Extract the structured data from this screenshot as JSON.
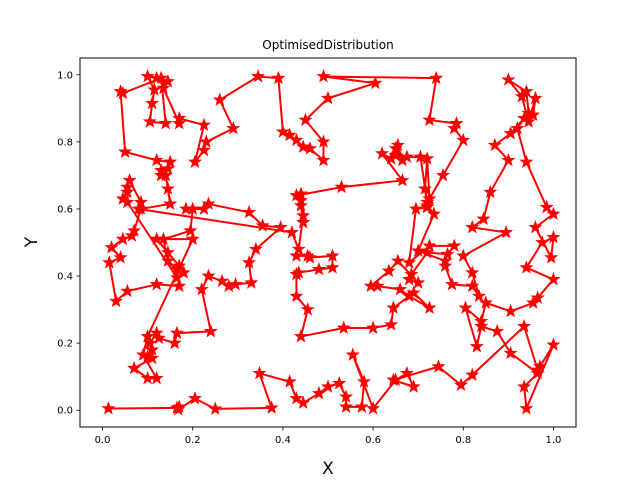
{
  "chart_data": {
    "type": "line",
    "title": "OptimisedDistribution",
    "xlabel": "X",
    "ylabel": "Y",
    "xlim": [
      -0.05,
      1.05
    ],
    "ylim": [
      -0.05,
      1.05
    ],
    "xticks": [
      "0.0",
      "0.2",
      "0.4",
      "0.6",
      "0.8",
      "1.0"
    ],
    "yticks": [
      "0.0",
      "0.2",
      "0.4",
      "0.6",
      "0.8",
      "1.0"
    ],
    "grid": false,
    "marker": "star",
    "color": "#ff0000",
    "series": [
      {
        "points": [
          [
            0.013,
            0.005
          ],
          [
            0.165,
            0.007
          ],
          [
            0.17,
            0.01
          ],
          [
            0.168,
            0.002
          ],
          [
            0.205,
            0.035
          ],
          [
            0.25,
            0.004
          ],
          [
            0.375,
            0.007
          ],
          [
            0.348,
            0.11
          ],
          [
            0.415,
            0.085
          ],
          [
            0.43,
            0.035
          ],
          [
            0.445,
            0.022
          ],
          [
            0.48,
            0.05
          ],
          [
            0.5,
            0.07
          ],
          [
            0.525,
            0.08
          ],
          [
            0.54,
            0.04
          ],
          [
            0.54,
            0.01
          ],
          [
            0.575,
            0.01
          ],
          [
            0.58,
            0.085
          ],
          [
            0.555,
            0.165
          ],
          [
            0.6,
            0.005
          ],
          [
            0.65,
            0.09
          ],
          [
            0.675,
            0.11
          ],
          [
            0.69,
            0.07
          ],
          [
            0.645,
            0.09
          ],
          [
            0.745,
            0.13
          ],
          [
            0.795,
            0.075
          ],
          [
            0.82,
            0.105
          ],
          [
            0.935,
            0.25
          ],
          [
            0.965,
            0.12
          ],
          [
            0.97,
            0.13
          ],
          [
            1.0,
            0.195
          ],
          [
            0.94,
            0.005
          ],
          [
            0.935,
            0.07
          ],
          [
            0.965,
            0.11
          ],
          [
            0.905,
            0.17
          ],
          [
            0.875,
            0.235
          ],
          [
            0.84,
            0.25
          ],
          [
            0.83,
            0.19
          ],
          [
            0.805,
            0.305
          ],
          [
            0.84,
            0.265
          ],
          [
            0.85,
            0.32
          ],
          [
            0.905,
            0.295
          ],
          [
            0.955,
            0.32
          ],
          [
            0.965,
            0.335
          ],
          [
            1.0,
            0.39
          ],
          [
            0.94,
            0.425
          ],
          [
            0.975,
            0.5
          ],
          [
            1.0,
            0.515
          ],
          [
            0.995,
            0.455
          ],
          [
            0.96,
            0.545
          ],
          [
            1.0,
            0.585
          ],
          [
            0.985,
            0.605
          ],
          [
            0.94,
            0.74
          ],
          [
            0.92,
            0.84
          ],
          [
            0.935,
            0.87
          ],
          [
            0.955,
            0.88
          ],
          [
            0.96,
            0.93
          ],
          [
            0.945,
            0.86
          ],
          [
            0.93,
            0.935
          ],
          [
            0.9,
            0.985
          ],
          [
            0.94,
            0.95
          ],
          [
            0.945,
            0.885
          ],
          [
            0.905,
            0.825
          ],
          [
            0.87,
            0.79
          ],
          [
            0.9,
            0.745
          ],
          [
            0.86,
            0.65
          ],
          [
            0.845,
            0.57
          ],
          [
            0.82,
            0.545
          ],
          [
            0.895,
            0.53
          ],
          [
            0.8,
            0.46
          ],
          [
            0.82,
            0.41
          ],
          [
            0.835,
            0.34
          ],
          [
            0.82,
            0.37
          ],
          [
            0.775,
            0.375
          ],
          [
            0.76,
            0.43
          ],
          [
            0.76,
            0.445
          ],
          [
            0.7,
            0.475
          ],
          [
            0.735,
            0.585
          ],
          [
            0.72,
            0.61
          ],
          [
            0.715,
            0.66
          ],
          [
            0.72,
            0.75
          ],
          [
            0.725,
            0.63
          ],
          [
            0.755,
            0.7
          ],
          [
            0.8,
            0.805
          ],
          [
            0.78,
            0.84
          ],
          [
            0.785,
            0.855
          ],
          [
            0.725,
            0.865
          ],
          [
            0.74,
            0.99
          ],
          [
            0.49,
            0.995
          ],
          [
            0.605,
            0.975
          ],
          [
            0.5,
            0.93
          ],
          [
            0.45,
            0.865
          ],
          [
            0.49,
            0.8
          ],
          [
            0.49,
            0.745
          ],
          [
            0.46,
            0.78
          ],
          [
            0.445,
            0.785
          ],
          [
            0.43,
            0.805
          ],
          [
            0.415,
            0.82
          ],
          [
            0.4,
            0.83
          ],
          [
            0.39,
            0.99
          ],
          [
            0.345,
            0.995
          ],
          [
            0.26,
            0.925
          ],
          [
            0.29,
            0.84
          ],
          [
            0.23,
            0.8
          ],
          [
            0.225,
            0.775
          ],
          [
            0.205,
            0.74
          ],
          [
            0.225,
            0.85
          ],
          [
            0.17,
            0.87
          ],
          [
            0.17,
            0.855
          ],
          [
            0.135,
            0.96
          ],
          [
            0.145,
            0.98
          ],
          [
            0.12,
            0.99
          ],
          [
            0.1,
            0.995
          ],
          [
            0.115,
            0.955
          ],
          [
            0.11,
            0.915
          ],
          [
            0.105,
            0.86
          ],
          [
            0.14,
            0.855
          ],
          [
            0.13,
            0.99
          ],
          [
            0.045,
            0.945
          ],
          [
            0.04,
            0.95
          ],
          [
            0.05,
            0.77
          ],
          [
            0.12,
            0.745
          ],
          [
            0.15,
            0.74
          ],
          [
            0.145,
            0.72
          ],
          [
            0.13,
            0.715
          ],
          [
            0.13,
            0.7
          ],
          [
            0.14,
            0.7
          ],
          [
            0.145,
            0.66
          ],
          [
            0.15,
            0.615
          ],
          [
            0.085,
            0.6
          ],
          [
            0.07,
            0.535
          ],
          [
            0.065,
            0.52
          ],
          [
            0.045,
            0.51
          ],
          [
            0.02,
            0.485
          ],
          [
            0.04,
            0.455
          ],
          [
            0.015,
            0.44
          ],
          [
            0.03,
            0.325
          ],
          [
            0.055,
            0.355
          ],
          [
            0.12,
            0.375
          ],
          [
            0.17,
            0.37
          ],
          [
            0.165,
            0.42
          ],
          [
            0.145,
            0.445
          ],
          [
            0.135,
            0.51
          ],
          [
            0.195,
            0.535
          ],
          [
            0.2,
            0.6
          ],
          [
            0.185,
            0.6
          ],
          [
            0.225,
            0.6
          ],
          [
            0.235,
            0.615
          ],
          [
            0.325,
            0.59
          ],
          [
            0.355,
            0.55
          ],
          [
            0.395,
            0.545
          ],
          [
            0.34,
            0.48
          ],
          [
            0.325,
            0.44
          ],
          [
            0.33,
            0.38
          ],
          [
            0.295,
            0.375
          ],
          [
            0.28,
            0.37
          ],
          [
            0.265,
            0.385
          ],
          [
            0.235,
            0.4
          ],
          [
            0.22,
            0.36
          ],
          [
            0.24,
            0.235
          ],
          [
            0.165,
            0.23
          ],
          [
            0.16,
            0.2
          ],
          [
            0.125,
            0.215
          ],
          [
            0.12,
            0.23
          ],
          [
            0.105,
            0.2
          ],
          [
            0.11,
            0.18
          ],
          [
            0.1,
            0.16
          ],
          [
            0.11,
            0.155
          ],
          [
            0.07,
            0.125
          ],
          [
            0.1,
            0.095
          ],
          [
            0.12,
            0.095
          ],
          [
            0.09,
            0.165
          ],
          [
            0.1,
            0.22
          ],
          [
            0.2,
            0.51
          ],
          [
            0.12,
            0.51
          ],
          [
            0.145,
            0.47
          ],
          [
            0.17,
            0.43
          ],
          [
            0.18,
            0.41
          ],
          [
            0.165,
            0.395
          ],
          [
            0.055,
            0.62
          ],
          [
            0.045,
            0.63
          ],
          [
            0.055,
            0.65
          ],
          [
            0.055,
            0.665
          ],
          [
            0.06,
            0.685
          ],
          [
            0.085,
            0.62
          ],
          [
            0.08,
            0.6
          ],
          [
            0.42,
            0.53
          ],
          [
            0.435,
            0.48
          ],
          [
            0.445,
            0.58
          ],
          [
            0.445,
            0.56
          ],
          [
            0.44,
            0.61
          ],
          [
            0.44,
            0.625
          ],
          [
            0.44,
            0.645
          ],
          [
            0.43,
            0.64
          ],
          [
            0.53,
            0.665
          ],
          [
            0.665,
            0.685
          ],
          [
            0.62,
            0.765
          ],
          [
            0.64,
            0.75
          ],
          [
            0.65,
            0.78
          ],
          [
            0.655,
            0.79
          ],
          [
            0.665,
            0.745
          ],
          [
            0.65,
            0.76
          ],
          [
            0.675,
            0.755
          ],
          [
            0.705,
            0.755
          ],
          [
            0.72,
            0.62
          ],
          [
            0.72,
            0.605
          ],
          [
            0.695,
            0.6
          ],
          [
            0.68,
            0.44
          ],
          [
            0.725,
            0.49
          ],
          [
            0.78,
            0.49
          ],
          [
            0.765,
            0.465
          ],
          [
            0.72,
            0.47
          ],
          [
            0.685,
            0.405
          ],
          [
            0.68,
            0.39
          ],
          [
            0.7,
            0.38
          ],
          [
            0.655,
            0.445
          ],
          [
            0.635,
            0.415
          ],
          [
            0.595,
            0.37
          ],
          [
            0.61,
            0.37
          ],
          [
            0.66,
            0.36
          ],
          [
            0.68,
            0.34
          ],
          [
            0.725,
            0.305
          ],
          [
            0.69,
            0.35
          ],
          [
            0.645,
            0.305
          ],
          [
            0.64,
            0.255
          ],
          [
            0.6,
            0.245
          ],
          [
            0.535,
            0.245
          ],
          [
            0.44,
            0.22
          ],
          [
            0.455,
            0.3
          ],
          [
            0.43,
            0.34
          ],
          [
            0.43,
            0.405
          ],
          [
            0.435,
            0.41
          ],
          [
            0.48,
            0.42
          ],
          [
            0.51,
            0.425
          ],
          [
            0.51,
            0.46
          ],
          [
            0.46,
            0.455
          ],
          [
            0.455,
            0.46
          ],
          [
            0.43,
            0.46
          ]
        ]
      }
    ]
  }
}
